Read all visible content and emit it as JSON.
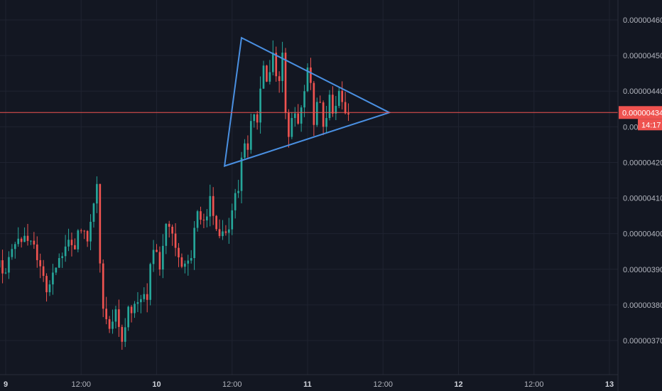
{
  "chart_data": {
    "type": "candlestick",
    "instrument_quote_precision": 8,
    "y_range": [
      3.65e-06,
      4.63e-06
    ],
    "y_ticks": [
      {
        "value": 4.6e-06,
        "label": "0.00000460"
      },
      {
        "value": 4.5e-06,
        "label": "0.00000450"
      },
      {
        "value": 4.4e-06,
        "label": "0.00000440"
      },
      {
        "value": 4.3e-06,
        "label": "0.00000430"
      },
      {
        "value": 4.2e-06,
        "label": "0.00000420"
      },
      {
        "value": 4.1e-06,
        "label": "0.00000410"
      },
      {
        "value": 4e-06,
        "label": "0.00000400"
      },
      {
        "value": 3.9e-06,
        "label": "0.00000390"
      },
      {
        "value": 3.8e-06,
        "label": "0.00000380"
      },
      {
        "value": 3.7e-06,
        "label": "0.00000370"
      }
    ],
    "x_range_hours": [
      -2,
      102
    ],
    "x_ticks": [
      {
        "hour": 0,
        "label": "9",
        "bold": true
      },
      {
        "hour": 12,
        "label": "12:00",
        "bold": false
      },
      {
        "hour": 24,
        "label": "10",
        "bold": true
      },
      {
        "hour": 36,
        "label": "12:00",
        "bold": false
      },
      {
        "hour": 48,
        "label": "11",
        "bold": true
      },
      {
        "hour": 60,
        "label": "12:00",
        "bold": false
      },
      {
        "hour": 72,
        "label": "12",
        "bold": true
      },
      {
        "hour": 84,
        "label": "12:00",
        "bold": false
      },
      {
        "hour": 96,
        "label": "13",
        "bold": true
      }
    ],
    "current_price": {
      "value": 4.34e-06,
      "label": "0.00000434",
      "countdown": "14:17"
    },
    "triangle": [
      {
        "hour": 37.5,
        "price": 4.55e-06
      },
      {
        "hour": 61.0,
        "price": 4.34e-06
      },
      {
        "hour": 34.8,
        "price": 4.19e-06
      }
    ],
    "price_path": [
      [
        -2,
        3.92e-06
      ],
      [
        0,
        3.9e-06
      ],
      [
        1.5,
        3.98e-06
      ],
      [
        3,
        3.99e-06
      ],
      [
        4.5,
        3.97e-06
      ],
      [
        5.5,
        3.9e-06
      ],
      [
        6.5,
        3.85e-06
      ],
      [
        8,
        3.9e-06
      ],
      [
        9.5,
        3.97e-06
      ],
      [
        11,
        3.97e-06
      ],
      [
        12,
        4.02e-06
      ],
      [
        13,
        3.98e-06
      ],
      [
        14.5,
        4.13e-06
      ],
      [
        15.3,
        3.78e-06
      ],
      [
        16.5,
        3.75e-06
      ],
      [
        17.5,
        3.78e-06
      ],
      [
        18.5,
        3.7e-06
      ],
      [
        19.5,
        3.78e-06
      ],
      [
        21,
        3.81e-06
      ],
      [
        22.5,
        3.83e-06
      ],
      [
        23.5,
        3.97e-06
      ],
      [
        24.5,
        3.91e-06
      ],
      [
        25.5,
        4.02e-06
      ],
      [
        27,
        3.97e-06
      ],
      [
        28,
        3.9e-06
      ],
      [
        29.5,
        3.92e-06
      ],
      [
        30.5,
        4.08e-06
      ],
      [
        31.5,
        4.03e-06
      ],
      [
        32.5,
        4.1e-06
      ],
      [
        33.5,
        4.02e-06
      ],
      [
        34.5,
        3.99e-06
      ],
      [
        35.5,
        4e-06
      ],
      [
        36.2,
        4.1e-06
      ],
      [
        37.0,
        4.12e-06
      ],
      [
        37.8,
        4.28e-06
      ],
      [
        38.6,
        4.21e-06
      ],
      [
        39.2,
        4.37e-06
      ],
      [
        40,
        4.32e-06
      ],
      [
        40.8,
        4.47e-06
      ],
      [
        41.6,
        4.41e-06
      ],
      [
        42.4,
        4.51e-06
      ],
      [
        43.2,
        4.4e-06
      ],
      [
        44,
        4.5e-06
      ],
      [
        44.8,
        4.25e-06
      ],
      [
        45.6,
        4.34e-06
      ],
      [
        46.4,
        4.3e-06
      ],
      [
        47.4,
        4.38e-06
      ],
      [
        48.2,
        4.49e-06
      ],
      [
        49,
        4.32e-06
      ],
      [
        49.8,
        4.38e-06
      ],
      [
        50.6,
        4.3e-06
      ],
      [
        51.4,
        4.38e-06
      ],
      [
        52.2,
        4.34e-06
      ],
      [
        53,
        4.4e-06
      ],
      [
        53.8,
        4.36e-06
      ],
      [
        54.6,
        4.34e-06
      ]
    ],
    "colors": {
      "background": "#131722",
      "grid": "#1f2330",
      "up": "#26a69a",
      "down": "#ef5350",
      "triangle": "#4a90e2",
      "price_line": "#ef5350",
      "axis_text": "#b2b5be"
    }
  }
}
